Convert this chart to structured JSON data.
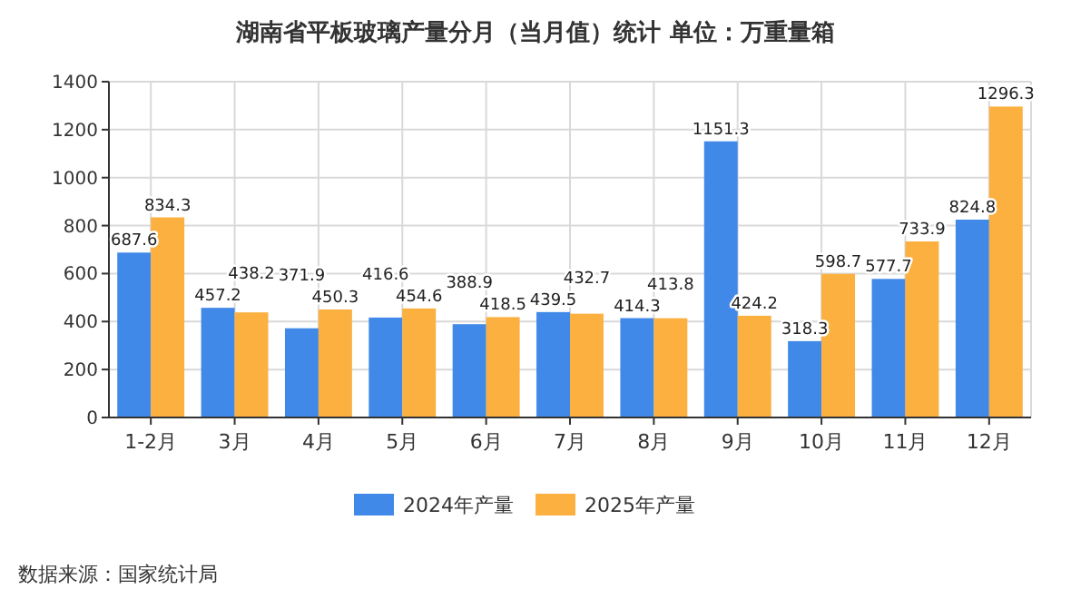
{
  "chart_data": {
    "type": "bar",
    "title": "湖南省平板玻璃产量分月（当月值）统计  单位：万重量箱",
    "categories": [
      "1-2月",
      "3月",
      "4月",
      "5月",
      "6月",
      "7月",
      "8月",
      "9月",
      "10月",
      "11月",
      "12月"
    ],
    "series": [
      {
        "name": "2024年产量",
        "color": "#4189e8",
        "values": [
          687.6,
          457.2,
          371.9,
          416.6,
          388.9,
          439.5,
          414.3,
          1151.3,
          318.3,
          577.7,
          824.8
        ]
      },
      {
        "name": "2025年产量",
        "color": "#fbb040",
        "values": [
          834.3,
          438.2,
          450.3,
          454.6,
          418.5,
          432.7,
          413.8,
          424.2,
          598.7,
          733.9,
          1296.3
        ]
      }
    ],
    "ylim": [
      0,
      1400
    ],
    "yticks": [
      0,
      200,
      400,
      600,
      800,
      1000,
      1200,
      1400
    ],
    "grid": true,
    "legend": "bottom",
    "data_labels": true,
    "annotations": [
      "数据来源：国家统计局"
    ]
  }
}
